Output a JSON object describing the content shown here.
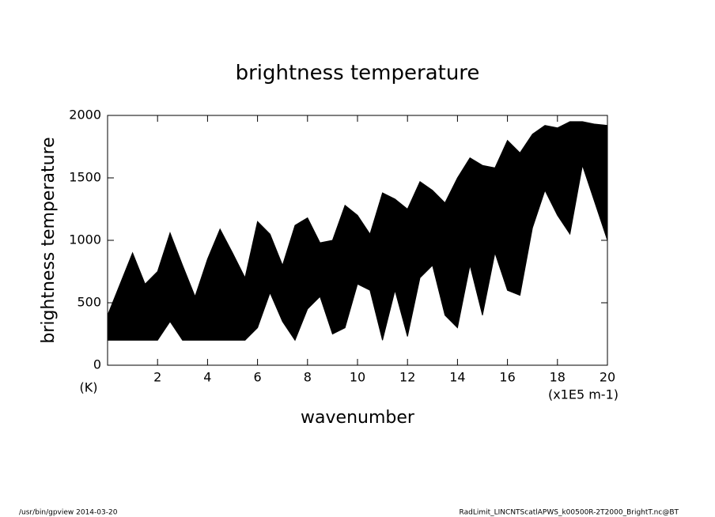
{
  "chart_data": {
    "type": "range-area",
    "title": "brightness temperature",
    "xlabel": "wavenumber",
    "ylabel": "brightness temperature",
    "y_unit": "(K)",
    "x_unit": "(x1E5 m-1)",
    "footer_left": "/usr/bin/gpview  2014-03-20",
    "footer_right": "RadLimit_LINCNTScatlAPWS_k00500R-2T2000_BrightT.nc@BT",
    "color": "#000000",
    "xlim": [
      0,
      20
    ],
    "ylim": [
      0,
      2000
    ],
    "xticks": [
      2,
      4,
      6,
      8,
      10,
      12,
      14,
      16,
      18,
      20
    ],
    "yticks": [
      0,
      500,
      1000,
      1500,
      2000
    ],
    "x": [
      0,
      0.5,
      1,
      1.5,
      2,
      2.5,
      3,
      3.5,
      4,
      4.5,
      5,
      5.5,
      6,
      6.5,
      7,
      7.5,
      8,
      8.5,
      9,
      9.5,
      10,
      10.5,
      11,
      11.5,
      12,
      12.5,
      13,
      13.5,
      14,
      14.5,
      15,
      15.5,
      16,
      16.5,
      17,
      17.5,
      18,
      18.5,
      19,
      19.5,
      20
    ],
    "upper": [
      400,
      650,
      900,
      650,
      750,
      1060,
      800,
      550,
      850,
      1090,
      900,
      700,
      1150,
      1050,
      800,
      1120,
      1180,
      980,
      1000,
      1280,
      1200,
      1050,
      1380,
      1330,
      1250,
      1470,
      1400,
      1300,
      1500,
      1660,
      1600,
      1580,
      1800,
      1700,
      1850,
      1920,
      1900,
      1950,
      1950,
      1930,
      1920
    ],
    "lower": [
      200,
      200,
      200,
      200,
      200,
      350,
      200,
      200,
      200,
      200,
      200,
      200,
      300,
      580,
      350,
      200,
      450,
      550,
      250,
      300,
      650,
      600,
      200,
      600,
      230,
      700,
      800,
      400,
      300,
      800,
      400,
      900,
      600,
      560,
      1100,
      1400,
      1200,
      1050,
      1600,
      1300,
      1000
    ]
  }
}
